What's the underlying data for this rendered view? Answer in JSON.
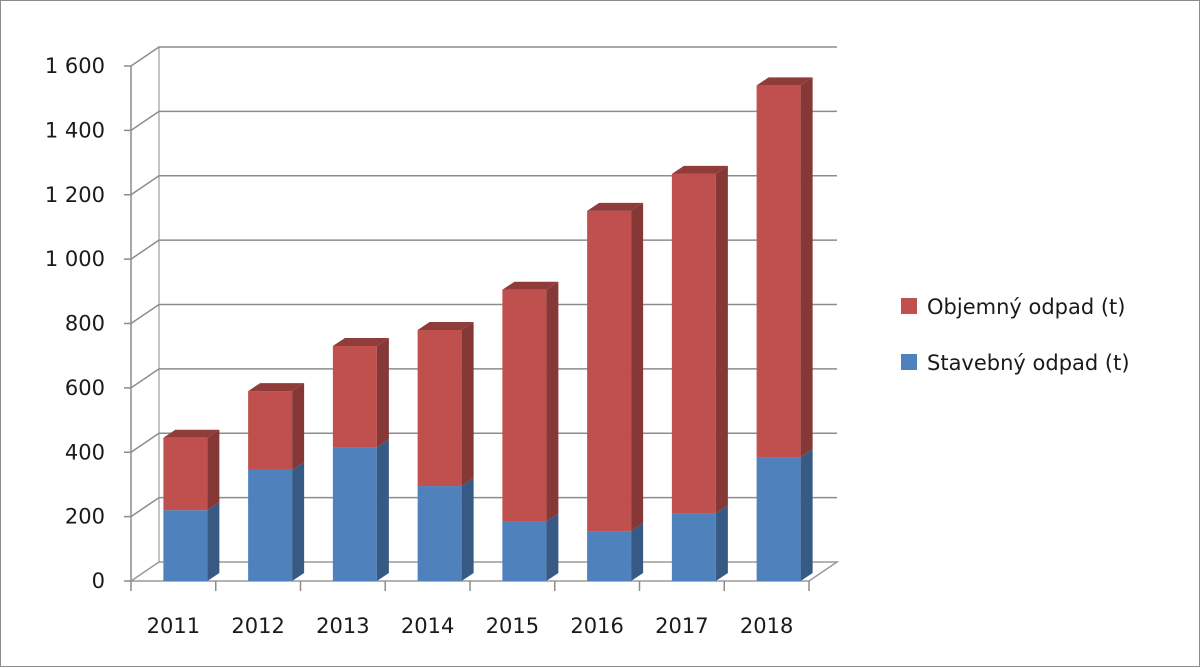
{
  "chart_data": {
    "type": "bar",
    "stacked": true,
    "three_d": true,
    "categories": [
      "2011",
      "2012",
      "2013",
      "2014",
      "2015",
      "2016",
      "2017",
      "2018"
    ],
    "series": [
      {
        "name": "Stavebný odpad (t)",
        "values": [
          220,
          345,
          415,
          295,
          185,
          155,
          210,
          385
        ],
        "color": "#4f81bd"
      },
      {
        "name": "Objemný odpad (t)",
        "values": [
          225,
          245,
          315,
          485,
          720,
          995,
          1055,
          1155
        ],
        "color": "#c0504d"
      }
    ],
    "y_ticks": [
      "0",
      "200",
      "400",
      "600",
      "800",
      "1 000",
      "1 200",
      "1 400",
      "1 600"
    ],
    "ylim": [
      0,
      1600
    ],
    "grid": true,
    "legend_position": "right",
    "legend_order": [
      "Objemný odpad (t)",
      "Stavebný odpad (t)"
    ]
  }
}
